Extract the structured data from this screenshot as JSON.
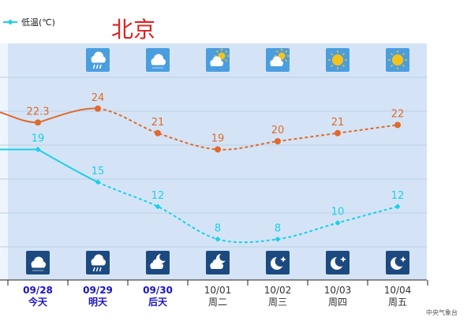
{
  "legend": {
    "label": "低温(℃)"
  },
  "city": "北京",
  "source": "中央气象台",
  "colors": {
    "high": "#e06a2c",
    "low": "#1ccfe8",
    "plot_bg": "#d4e4f6",
    "today_bg": "#eef5fd",
    "grid": "#bccfe4",
    "title": "#e02020",
    "date_active": "#1a12c8",
    "date_past": "#333333"
  },
  "chart_data": {
    "type": "line",
    "categories": [
      "09/28",
      "09/29",
      "09/30",
      "10/01",
      "10/02",
      "10/03",
      "10/04"
    ],
    "weekdays": [
      "今天",
      "明天",
      "后天",
      "周二",
      "周三",
      "周四",
      "周五"
    ],
    "highlighted": [
      true,
      true,
      true,
      false,
      false,
      false,
      false
    ],
    "series": [
      {
        "key": "high",
        "values": [
          22.3,
          24,
          21,
          19,
          20,
          21,
          22
        ],
        "labels": [
          "22.3",
          "24",
          "21",
          "19",
          "20",
          "21",
          "22"
        ]
      },
      {
        "name": "低温(℃)",
        "key": "low",
        "values": [
          19,
          15,
          12,
          8,
          8,
          10,
          12
        ],
        "labels": [
          "19",
          "15",
          "12",
          "8",
          "8",
          "10",
          "12"
        ]
      }
    ],
    "day_icons": [
      "cloudy-icon",
      "rain-icon",
      "cloudy-icon",
      "partly-cloudy-icon",
      "partly-cloudy-icon",
      "sunny-icon",
      "sunny-icon"
    ],
    "night_icons": [
      "night-cloudy-icon",
      "night-rain-icon",
      "night-partly-cloudy-icon",
      "night-partly-cloudy-icon",
      "night-clear-icon",
      "night-clear-icon",
      "night-clear-icon"
    ],
    "ylim": [
      3,
      32
    ],
    "legend_position": "top-left"
  }
}
